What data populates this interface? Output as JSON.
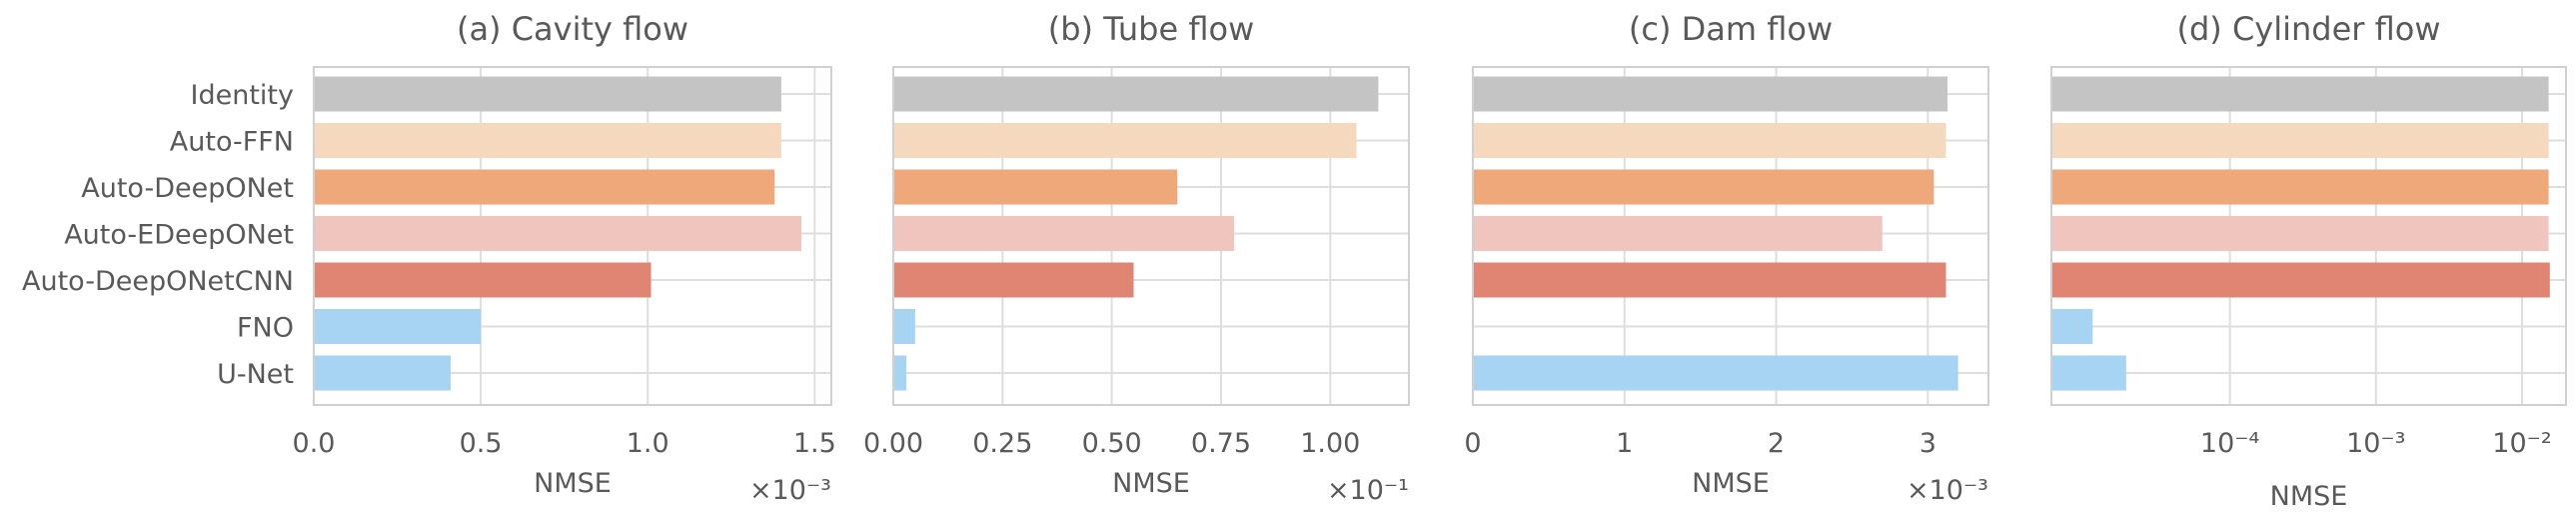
{
  "categories": [
    "Identity",
    "Auto-FFN",
    "Auto-DeepONet",
    "Auto-EDeepONet",
    "Auto-DeepONetCNN",
    "FNO",
    "U-Net"
  ],
  "colors": [
    "#c4c4c4",
    "#f5d9bf",
    "#eea87a",
    "#efc5bd",
    "#e08573",
    "#a6d4f2",
    "#a6d4f2"
  ],
  "chart_data": [
    {
      "type": "bar",
      "orientation": "horizontal",
      "title": "(a) Cavity flow",
      "xlabel": "NMSE",
      "scale_note": "×10⁻³",
      "xscale": "linear",
      "xlim": [
        0,
        1.55
      ],
      "ticks": [
        0,
        0.5,
        1.0,
        1.5
      ],
      "tick_labels": [
        "0.0",
        "0.5",
        "1.0",
        "1.5"
      ],
      "categories": [
        "Identity",
        "Auto-FFN",
        "Auto-DeepONet",
        "Auto-EDeepONet",
        "Auto-DeepONetCNN",
        "FNO",
        "U-Net"
      ],
      "values": [
        1.4,
        1.4,
        1.38,
        1.46,
        1.01,
        0.5,
        0.41
      ]
    },
    {
      "type": "bar",
      "orientation": "horizontal",
      "title": "(b) Tube flow",
      "xlabel": "NMSE",
      "scale_note": "×10⁻¹",
      "xscale": "linear",
      "xlim": [
        0,
        1.18
      ],
      "ticks": [
        0,
        0.25,
        0.5,
        0.75,
        1.0
      ],
      "tick_labels": [
        "0.00",
        "0.25",
        "0.50",
        "0.75",
        "1.00"
      ],
      "categories": [
        "Identity",
        "Auto-FFN",
        "Auto-DeepONet",
        "Auto-EDeepONet",
        "Auto-DeepONetCNN",
        "FNO",
        "U-Net"
      ],
      "values": [
        1.11,
        1.06,
        0.65,
        0.78,
        0.55,
        0.05,
        0.03
      ]
    },
    {
      "type": "bar",
      "orientation": "horizontal",
      "title": "(c) Dam flow",
      "xlabel": "NMSE",
      "scale_note": "×10⁻³",
      "xscale": "linear",
      "xlim": [
        0,
        3.4
      ],
      "ticks": [
        0,
        1,
        2,
        3
      ],
      "tick_labels": [
        "0",
        "1",
        "2",
        "3"
      ],
      "categories": [
        "Identity",
        "Auto-FFN",
        "Auto-DeepONet",
        "Auto-EDeepONet",
        "Auto-DeepONetCNN",
        "FNO",
        "U-Net"
      ],
      "values": [
        3.13,
        3.12,
        3.04,
        2.7,
        3.12,
        null,
        3.2
      ]
    },
    {
      "type": "bar",
      "orientation": "horizontal",
      "title": "(d) Cylinder flow",
      "xlabel": "NMSE",
      "scale_note": "",
      "xscale": "log",
      "xlim": [
        6e-06,
        0.02
      ],
      "ticks": [
        0.0001,
        0.001,
        0.01
      ],
      "tick_labels": [
        "10⁻⁴",
        "10⁻³",
        "10⁻²"
      ],
      "categories": [
        "Identity",
        "Auto-FFN",
        "Auto-DeepONet",
        "Auto-EDeepONet",
        "Auto-DeepONetCNN",
        "FNO",
        "U-Net"
      ],
      "values": [
        0.0152,
        0.0152,
        0.0152,
        0.0152,
        0.0155,
        1.15e-05,
        1.95e-05
      ]
    }
  ]
}
